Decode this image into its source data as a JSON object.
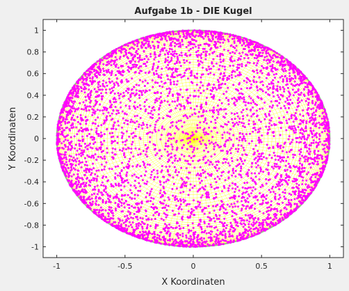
{
  "chart_data": {
    "type": "scatter",
    "title": "Aufgabe 1b - DIE Kugel",
    "xlabel": "X Koordinaten",
    "ylabel": "Y Koordinaten",
    "xlim": [
      -1.1,
      1.1
    ],
    "ylim": [
      -1.1,
      1.1
    ],
    "xticks": [
      -1,
      -0.5,
      0,
      0.5,
      1
    ],
    "xtick_labels": [
      "-1",
      "-0.5",
      "0",
      "0.5",
      "1"
    ],
    "yticks": [
      -1,
      -0.8,
      -0.6,
      -0.4,
      -0.2,
      0,
      0.2,
      0.4,
      0.6,
      0.8,
      1
    ],
    "ytick_labels": [
      "-1",
      "-0.8",
      "-0.6",
      "-0.4",
      "-0.2",
      "0",
      "0.2",
      "0.4",
      "0.6",
      "0.8",
      "1"
    ],
    "grid": false,
    "legend": "none",
    "mesh": {
      "shape": "unit-sphere-wireframe",
      "radius": 1,
      "view": "top-down",
      "color": "#ffff00",
      "edge_color": "#7fbf7f"
    },
    "series": [
      {
        "marker": "dot",
        "color": "#ff00ff",
        "distribution": "uniform-random points on unit sphere, projected to x-y plane",
        "point_count": 5000
      }
    ],
    "colors": {
      "background": "#f0f0f0",
      "axes_background": "#ffffff",
      "axis_color": "#262626"
    }
  }
}
